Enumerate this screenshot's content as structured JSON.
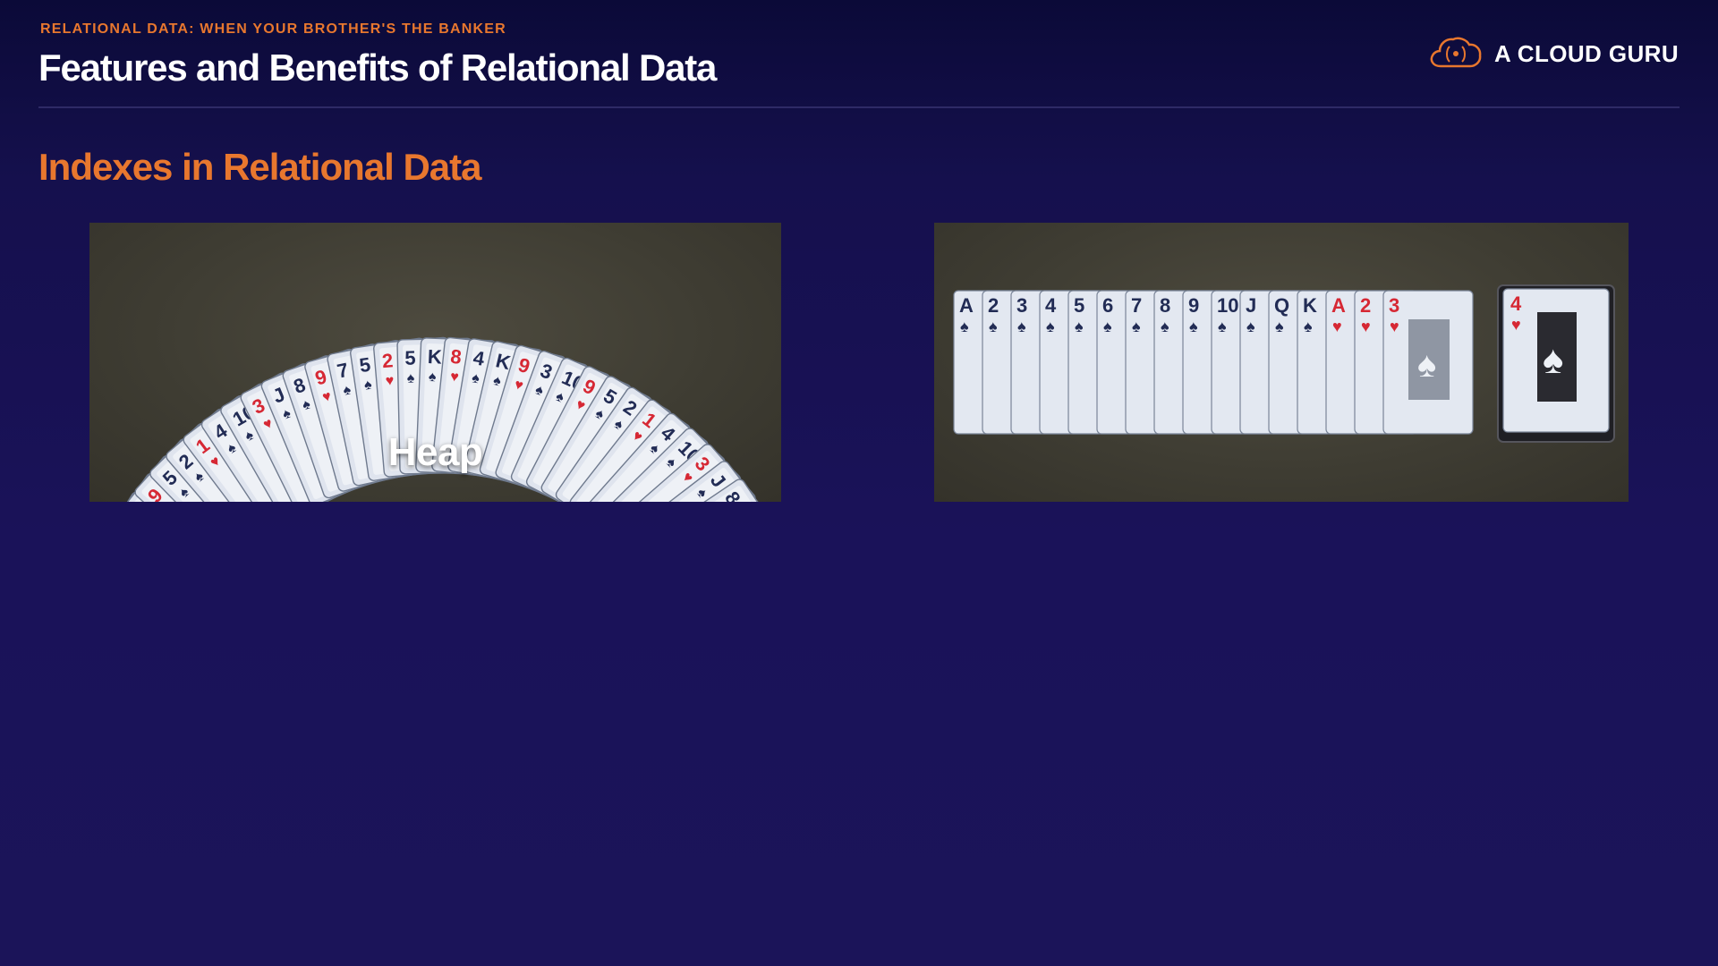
{
  "header": {
    "eyebrow": "RELATIONAL DATA: WHEN YOUR BROTHER'S THE BANKER",
    "title": "Features and Benefits of Relational Data"
  },
  "brand": {
    "name": "A CLOUD GURU",
    "icon": "cloud-logo-icon",
    "accent_color": "#e8772e"
  },
  "section": {
    "title": "Indexes in Relational Data"
  },
  "images": {
    "heap": {
      "label": "Heap",
      "card_ranks": [
        "K",
        "9",
        "3",
        "10",
        "9",
        "5",
        "2",
        "1",
        "4",
        "10",
        "3",
        "J",
        "8",
        "9",
        "7",
        "5",
        "2",
        "5",
        "K",
        "8",
        "4"
      ]
    },
    "sorted": {
      "spades": [
        "A",
        "2",
        "3",
        "4",
        "5",
        "6",
        "7",
        "8",
        "9",
        "10",
        "J",
        "Q",
        "K"
      ],
      "hearts": [
        "A",
        "2",
        "3"
      ],
      "separate_card": "4"
    }
  }
}
